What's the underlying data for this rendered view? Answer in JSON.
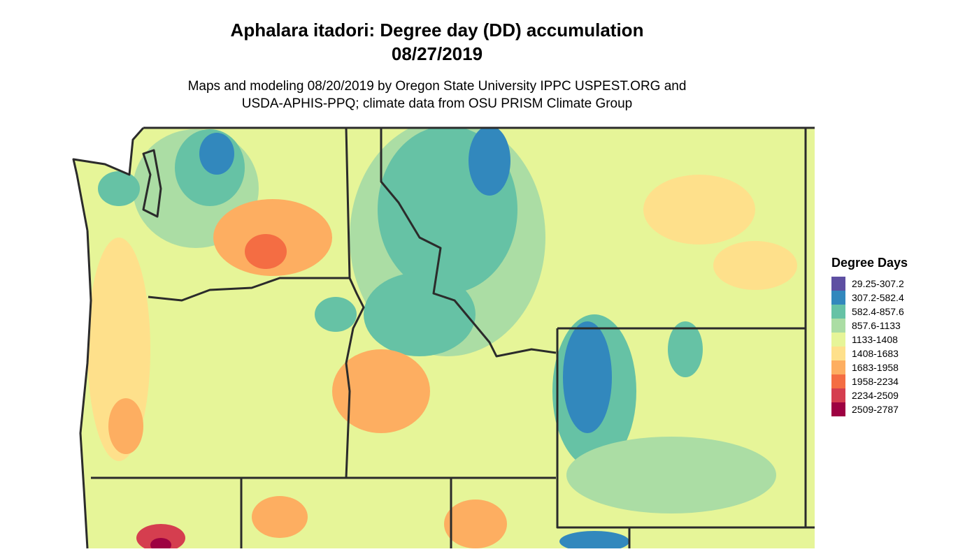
{
  "header": {
    "title": [
      "Aphalara itadori: Degree day (DD) accumulation",
      "08/27/2019"
    ],
    "subtitle": [
      "Maps and modeling 08/20/2019 by Oregon State University IPPC USPEST.ORG and",
      "USDA-APHIS-PPQ; climate data from OSU PRISM Climate Group"
    ]
  },
  "legend": {
    "title": "Degree Days",
    "items": [
      {
        "label": "29.25-307.2",
        "color": "#5e4fa2"
      },
      {
        "label": "307.2-582.4",
        "color": "#3288bd"
      },
      {
        "label": "582.4-857.6",
        "color": "#66c2a5"
      },
      {
        "label": "857.6-1133",
        "color": "#abdda4"
      },
      {
        "label": "1133-1408",
        "color": "#e6f598"
      },
      {
        "label": "1408-1683",
        "color": "#fee08b"
      },
      {
        "label": "1683-1958",
        "color": "#fdae61"
      },
      {
        "label": "1958-2234",
        "color": "#f46d43"
      },
      {
        "label": "2234-2509",
        "color": "#d53e4f"
      },
      {
        "label": "2509-2787",
        "color": "#9e0142"
      }
    ]
  }
}
